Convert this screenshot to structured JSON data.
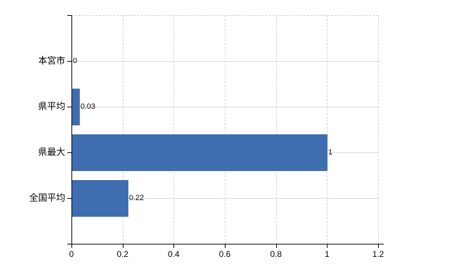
{
  "chart_data": {
    "type": "bar",
    "orientation": "horizontal",
    "title": "",
    "categories": [
      "本宮市",
      "県平均",
      "県最大",
      "全国平均"
    ],
    "values": [
      0,
      0.03,
      1,
      0.22
    ],
    "data_labels": [
      "0",
      "0.03",
      "1",
      "0.22"
    ],
    "x_ticks": [
      0,
      0.2,
      0.4,
      0.6,
      0.8,
      1,
      1.2
    ],
    "x_tick_labels": [
      "0",
      "0.2",
      "0.4",
      "0.6",
      "0.8",
      "1",
      "1.2"
    ],
    "xlim": [
      0,
      1.2
    ],
    "xlabel": "",
    "ylabel": "",
    "grid": true,
    "legend": false,
    "colors": {
      "bar": "#3F6EB0",
      "axis": "#000000",
      "text": "#000000",
      "h_grid": "#d4ddd4",
      "v_grid": "#d5cfd4",
      "plot_top_border": "#d1d1d1",
      "background": "#ffffff"
    }
  }
}
